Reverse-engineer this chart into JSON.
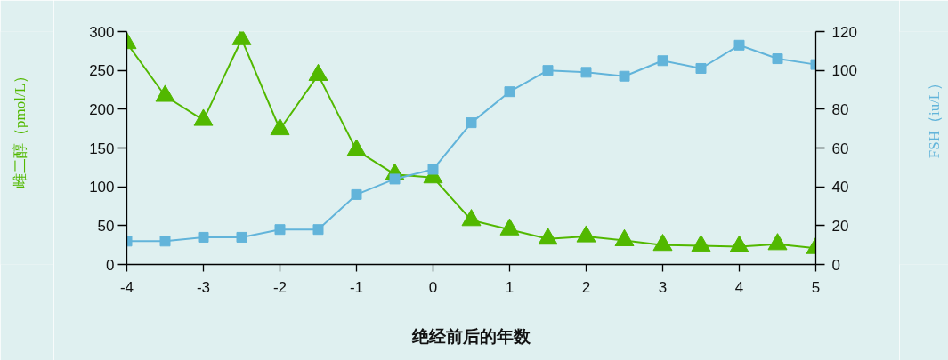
{
  "chart_data": {
    "type": "line",
    "xlabel": "绝经前后的年数",
    "ylabel": "雌二醇（pmol/L）",
    "y2label": "FSH（iu/L）",
    "x": [
      -4,
      -3.5,
      -3,
      -2.5,
      -2,
      -1.5,
      -1,
      -0.5,
      0,
      0.5,
      1,
      1.5,
      2,
      2.5,
      3,
      3.5,
      4,
      4.5,
      5
    ],
    "xlim": [
      -4,
      5
    ],
    "xticks": [
      -4,
      -3,
      -2,
      -1,
      0,
      1,
      2,
      3,
      4,
      5
    ],
    "ylim": [
      0,
      300
    ],
    "yticks": [
      0,
      50,
      100,
      150,
      200,
      250,
      300
    ],
    "y2lim": [
      0,
      120
    ],
    "y2ticks": [
      0,
      20,
      40,
      60,
      80,
      100,
      120
    ],
    "series": [
      {
        "color": "#52b800",
        "marker": "triangle",
        "axis": "y",
        "values": [
          285,
          217,
          186,
          290,
          174,
          244,
          147,
          116,
          112,
          57,
          45,
          33,
          36,
          31,
          25,
          24,
          23,
          26,
          21
        ]
      },
      {
        "color": "#62b4da",
        "marker": "square",
        "axis": "y2",
        "values": [
          12,
          12,
          14,
          14,
          18,
          18,
          36,
          44,
          49,
          73,
          89,
          100,
          99,
          97,
          105,
          101,
          113,
          106,
          103
        ]
      }
    ]
  }
}
